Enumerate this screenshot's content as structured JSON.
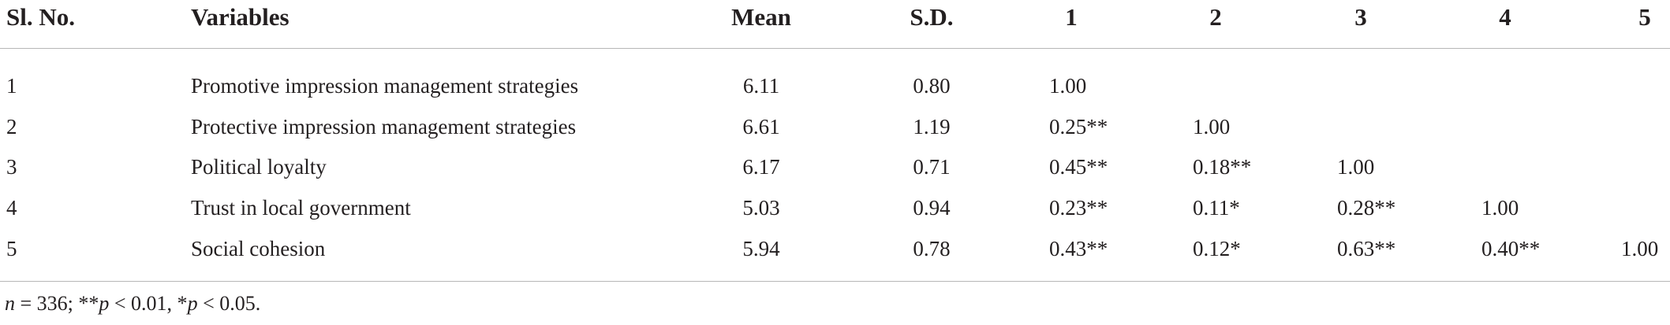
{
  "table": {
    "headers": {
      "sl_no": "Sl. No.",
      "variables": "Variables",
      "mean": "Mean",
      "sd": "S.D.",
      "c1": "1",
      "c2": "2",
      "c3": "3",
      "c4": "4",
      "c5": "5"
    },
    "rows": [
      {
        "sl": "1",
        "variable": "Promotive impression management strategies",
        "mean": "6.11",
        "sd": "0.80",
        "c1": "1.00",
        "c2": "",
        "c3": "",
        "c4": "",
        "c5": ""
      },
      {
        "sl": "2",
        "variable": "Protective impression management strategies",
        "mean": "6.61",
        "sd": "1.19",
        "c1": "0.25**",
        "c2": "1.00",
        "c3": "",
        "c4": "",
        "c5": ""
      },
      {
        "sl": "3",
        "variable": "Political loyalty",
        "mean": "6.17",
        "sd": "0.71",
        "c1": "0.45**",
        "c2": "0.18**",
        "c3": "1.00",
        "c4": "",
        "c5": ""
      },
      {
        "sl": "4",
        "variable": "Trust in local government",
        "mean": "5.03",
        "sd": "0.94",
        "c1": "0.23**",
        "c2": "0.11*",
        "c3": "0.28**",
        "c4": "1.00",
        "c5": ""
      },
      {
        "sl": "5",
        "variable": "Social cohesion",
        "mean": "5.94",
        "sd": "0.78",
        "c1": "0.43**",
        "c2": "0.12*",
        "c3": "0.63**",
        "c4": "0.40**",
        "c5": "1.00"
      }
    ]
  },
  "footnote": {
    "n_symbol": "n",
    "n_value": " = 336; **",
    "p_symbol_1": "p",
    "p_value_1": " < 0.01, *",
    "p_symbol_2": "p",
    "p_value_2": " < 0.05."
  }
}
